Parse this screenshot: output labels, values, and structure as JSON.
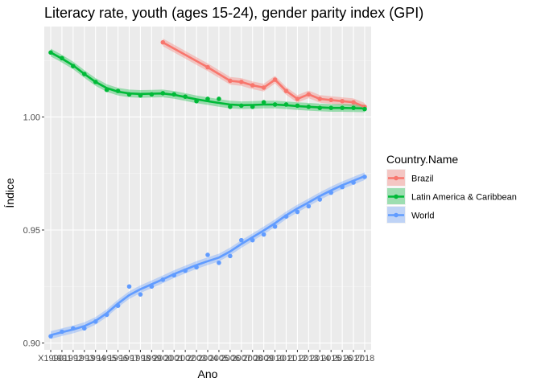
{
  "chart_data": {
    "type": "line",
    "title": "Literacy rate, youth (ages 15-24), gender parity index (GPI)",
    "xlabel": "Ano",
    "ylabel": "Índice",
    "x": [
      "X1990",
      "1991",
      "1992",
      "1993",
      "1994",
      "1995",
      "1996",
      "1997",
      "1998",
      "1999",
      "2000",
      "2001",
      "2002",
      "2003",
      "2004",
      "2005",
      "2006",
      "2007",
      "2008",
      "2009",
      "2010",
      "2011",
      "2012",
      "2013",
      "2014",
      "2015",
      "2016",
      "2017",
      "2018"
    ],
    "ylim": [
      0.897,
      1.04
    ],
    "yticks": [
      0.9,
      0.95,
      1.0
    ],
    "ytick_labels": [
      "0.90",
      "0.95",
      "1.00"
    ],
    "grid": true,
    "legend": {
      "title": "Country.Name",
      "placement": "right"
    },
    "series": [
      {
        "name": "Brazil",
        "color": "#F8766D",
        "x": [
          "2000",
          "2004",
          "2006",
          "2007",
          "2008",
          "2009",
          "2010",
          "2011",
          "2012",
          "2013",
          "2014",
          "2015",
          "2016",
          "2017",
          "2018"
        ],
        "values": [
          1.033,
          1.022,
          1.016,
          1.0155,
          1.014,
          1.013,
          1.0165,
          1.0115,
          1.008,
          1.01,
          1.008,
          1.0075,
          1.007,
          1.0065,
          1.0045
        ],
        "smooth": [
          1.033,
          1.022,
          1.016,
          1.0155,
          1.014,
          1.013,
          1.0165,
          1.0115,
          1.008,
          1.01,
          1.008,
          1.0075,
          1.007,
          1.0065,
          1.0045
        ]
      },
      {
        "name": "Latin America & Caribbean",
        "color": "#00BA38",
        "x": [
          "X1990",
          "1991",
          "1992",
          "1993",
          "1994",
          "1995",
          "1996",
          "1997",
          "1998",
          "1999",
          "2000",
          "2001",
          "2002",
          "2003",
          "2004",
          "2005",
          "2006",
          "2007",
          "2008",
          "2009",
          "2010",
          "2011",
          "2012",
          "2013",
          "2014",
          "2015",
          "2016",
          "2017",
          "2018"
        ],
        "values": [
          1.0285,
          1.026,
          1.0225,
          1.019,
          1.0155,
          1.012,
          1.0115,
          1.01,
          1.0095,
          1.01,
          1.0105,
          1.01,
          1.009,
          1.007,
          1.008,
          1.008,
          1.0045,
          1.005,
          1.0045,
          1.0065,
          1.0055,
          1.0055,
          1.005,
          1.0045,
          1.004,
          1.004,
          1.004,
          1.004,
          1.0035
        ],
        "smooth": [
          1.0285,
          1.0258,
          1.0228,
          1.019,
          1.0155,
          1.0128,
          1.0112,
          1.0104,
          1.0102,
          1.0103,
          1.0104,
          1.0098,
          1.0088,
          1.0078,
          1.007,
          1.0062,
          1.0055,
          1.0052,
          1.0053,
          1.0055,
          1.0055,
          1.0052,
          1.0048,
          1.0045,
          1.0042,
          1.004,
          1.004,
          1.0039,
          1.0038
        ]
      },
      {
        "name": "World",
        "color": "#619CFF",
        "x": [
          "X1990",
          "1991",
          "1992",
          "1993",
          "1994",
          "1995",
          "1996",
          "1997",
          "1998",
          "1999",
          "2000",
          "2001",
          "2002",
          "2003",
          "2004",
          "2005",
          "2006",
          "2007",
          "2008",
          "2009",
          "2010",
          "2011",
          "2012",
          "2013",
          "2014",
          "2015",
          "2016",
          "2017",
          "2018"
        ],
        "values": [
          0.903,
          0.905,
          0.9065,
          0.9065,
          0.9095,
          0.9125,
          0.9165,
          0.925,
          0.9215,
          0.925,
          0.928,
          0.93,
          0.932,
          0.9335,
          0.939,
          0.9355,
          0.9385,
          0.9455,
          0.9455,
          0.948,
          0.9515,
          0.956,
          0.958,
          0.9605,
          0.9635,
          0.9665,
          0.969,
          0.971,
          0.9735
        ],
        "smooth": [
          0.9035,
          0.9048,
          0.906,
          0.9075,
          0.9098,
          0.9132,
          0.9175,
          0.9212,
          0.9238,
          0.926,
          0.9282,
          0.9305,
          0.9325,
          0.9345,
          0.9362,
          0.9378,
          0.9405,
          0.9438,
          0.9468,
          0.9498,
          0.953,
          0.9565,
          0.9595,
          0.9622,
          0.965,
          0.9675,
          0.9698,
          0.9718,
          0.9738
        ]
      }
    ]
  }
}
